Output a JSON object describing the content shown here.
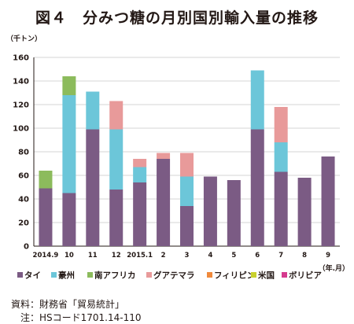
{
  "chart_data": {
    "type": "bar",
    "stacked": true,
    "title": "図４　分みつ糖の月別国別輸入量の推移",
    "ylabel": "（千トン）",
    "xlabel": "（年.月）",
    "ylim": [
      0,
      160
    ],
    "yticks": [
      0,
      20,
      40,
      60,
      80,
      100,
      120,
      140,
      160
    ],
    "grid": true,
    "legend_position": "bottom",
    "categories": [
      "2014.9",
      "10",
      "11",
      "12",
      "2015.1",
      "2",
      "3",
      "4",
      "5",
      "6",
      "7",
      "8",
      "9"
    ],
    "series": [
      {
        "name": "タイ",
        "color": "#7b5b84",
        "values": [
          49,
          45,
          99,
          48,
          54,
          74,
          34,
          59,
          56,
          99,
          63,
          58,
          76
        ]
      },
      {
        "name": "豪州",
        "color": "#6cc6d9",
        "values": [
          0,
          83,
          32,
          51,
          13,
          0,
          25,
          0,
          0,
          50,
          25,
          0,
          0
        ]
      },
      {
        "name": "南アフリカ",
        "color": "#8cbb5c",
        "values": [
          15,
          16,
          0,
          0,
          0,
          0,
          0,
          0,
          0,
          0,
          0,
          0,
          0
        ]
      },
      {
        "name": "グアテマラ",
        "color": "#e89a9a",
        "values": [
          0,
          0,
          0,
          24,
          7,
          5,
          20,
          0,
          0,
          0,
          30,
          0,
          0
        ]
      },
      {
        "name": "フィリピン",
        "color": "#f08a3c",
        "values": [
          0,
          0,
          0,
          0,
          0,
          0,
          0,
          0,
          0,
          0,
          0,
          0,
          0
        ]
      },
      {
        "name": "米国",
        "color": "#c9d12e",
        "values": [
          0,
          0,
          0,
          0,
          0,
          0,
          0,
          0,
          0,
          0,
          0,
          0,
          0
        ]
      },
      {
        "name": "ボリビア",
        "color": "#d63a8e",
        "values": [
          0,
          0,
          0,
          0,
          0,
          0,
          0,
          0,
          0,
          0,
          0,
          0,
          0
        ]
      }
    ]
  },
  "notes": {
    "source": "資料：財務省「貿易統計」",
    "hs": "　注：HSコード1701.14-110"
  }
}
